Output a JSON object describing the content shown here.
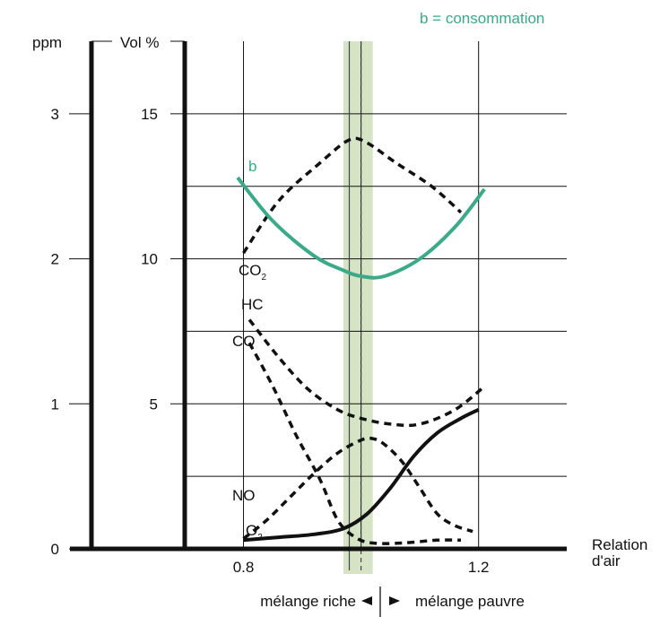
{
  "chart_data": {
    "type": "line",
    "legend_note": "b = consommation",
    "left_axis": {
      "label": "ppm",
      "ticks": [
        "0",
        "1",
        "2",
        "3"
      ],
      "range": [
        0,
        3.5
      ]
    },
    "right_axis": {
      "label": "Vol %",
      "ticks": [
        "5",
        "10",
        "15"
      ],
      "range": [
        0,
        17.5
      ]
    },
    "xaxis": {
      "label_line1": "Relation",
      "label_line2": "d'air",
      "ticks": [
        "0.8",
        "1.2"
      ],
      "range": [
        0.7,
        1.35
      ]
    },
    "bottom_note": {
      "left": "mélange riche",
      "right": "mélange pauvre"
    },
    "band": {
      "from": 0.97,
      "to": 1.02
    },
    "vlines": [
      0.98,
      1.0
    ],
    "series": [
      {
        "name": "b",
        "color": "#3aaa88",
        "style": "solid",
        "points": [
          [
            0.79,
            12.8
          ],
          [
            0.85,
            11.3
          ],
          [
            0.92,
            10.1
          ],
          [
            0.97,
            9.6
          ],
          [
            1.0,
            9.4
          ],
          [
            1.04,
            9.4
          ],
          [
            1.1,
            10.0
          ],
          [
            1.16,
            11.1
          ],
          [
            1.21,
            12.4
          ]
        ]
      },
      {
        "name": "CO2",
        "color": "#111111",
        "style": "dashed",
        "points": [
          [
            0.8,
            10.2
          ],
          [
            0.86,
            12.0
          ],
          [
            0.93,
            13.3
          ],
          [
            0.98,
            14.1
          ],
          [
            1.01,
            14.0
          ],
          [
            1.06,
            13.3
          ],
          [
            1.12,
            12.5
          ],
          [
            1.17,
            11.6
          ]
        ]
      },
      {
        "name": "HC",
        "color": "#111111",
        "style": "dashed",
        "points": [
          [
            0.81,
            7.9
          ],
          [
            0.86,
            6.6
          ],
          [
            0.91,
            5.5
          ],
          [
            0.96,
            4.8
          ],
          [
            1.0,
            4.5
          ],
          [
            1.05,
            4.3
          ],
          [
            1.1,
            4.3
          ],
          [
            1.16,
            4.8
          ],
          [
            1.21,
            5.6
          ]
        ]
      },
      {
        "name": "CO",
        "color": "#111111",
        "style": "dashed",
        "points": [
          [
            0.81,
            7.1
          ],
          [
            0.85,
            5.6
          ],
          [
            0.89,
            3.9
          ],
          [
            0.93,
            2.4
          ],
          [
            0.96,
            1.0
          ],
          [
            0.99,
            0.4
          ],
          [
            1.02,
            0.2
          ],
          [
            1.07,
            0.2
          ],
          [
            1.13,
            0.3
          ],
          [
            1.17,
            0.3
          ]
        ]
      },
      {
        "name": "NO",
        "color": "#111111",
        "style": "dashed",
        "points": [
          [
            0.8,
            0.35
          ],
          [
            0.84,
            1.0
          ],
          [
            0.88,
            1.8
          ],
          [
            0.92,
            2.6
          ],
          [
            0.96,
            3.3
          ],
          [
            1.0,
            3.75
          ],
          [
            1.02,
            3.8
          ],
          [
            1.04,
            3.6
          ],
          [
            1.07,
            3.0
          ],
          [
            1.1,
            2.1
          ],
          [
            1.13,
            1.2
          ],
          [
            1.16,
            0.8
          ],
          [
            1.19,
            0.6
          ]
        ]
      },
      {
        "name": "O2",
        "color": "#111111",
        "style": "solid",
        "points": [
          [
            0.8,
            0.3
          ],
          [
            0.86,
            0.4
          ],
          [
            0.92,
            0.5
          ],
          [
            0.97,
            0.7
          ],
          [
            1.01,
            1.2
          ],
          [
            1.05,
            2.1
          ],
          [
            1.09,
            3.2
          ],
          [
            1.13,
            4.0
          ],
          [
            1.17,
            4.5
          ],
          [
            1.2,
            4.8
          ]
        ]
      }
    ]
  }
}
